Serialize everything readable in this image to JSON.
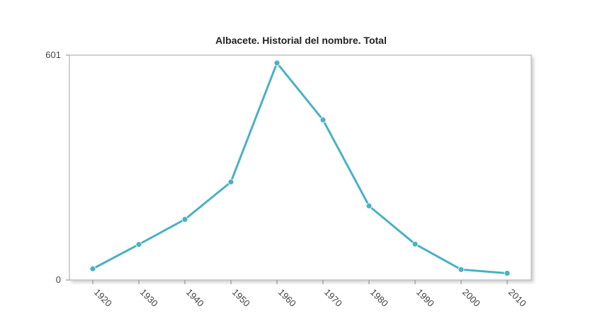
{
  "chart_data": {
    "type": "line",
    "title": "Albacete. Historial del nombre. Total",
    "xlabel": "",
    "ylabel": "",
    "x": [
      1920,
      1930,
      1940,
      1950,
      1960,
      1970,
      1980,
      1990,
      2000,
      2010
    ],
    "x_tick_labels": [
      "1920",
      "1930",
      "1940",
      "1950",
      "1960",
      "1970",
      "1980",
      "1990",
      "2000",
      "2010"
    ],
    "y_tick_labels": [
      "0",
      "601"
    ],
    "ylim": [
      0,
      601
    ],
    "grid": false,
    "series": [
      {
        "values": [
          30,
          95,
          162,
          262,
          580,
          428,
          198,
          96,
          28,
          18
        ],
        "color": "#4bb0c6"
      }
    ]
  }
}
